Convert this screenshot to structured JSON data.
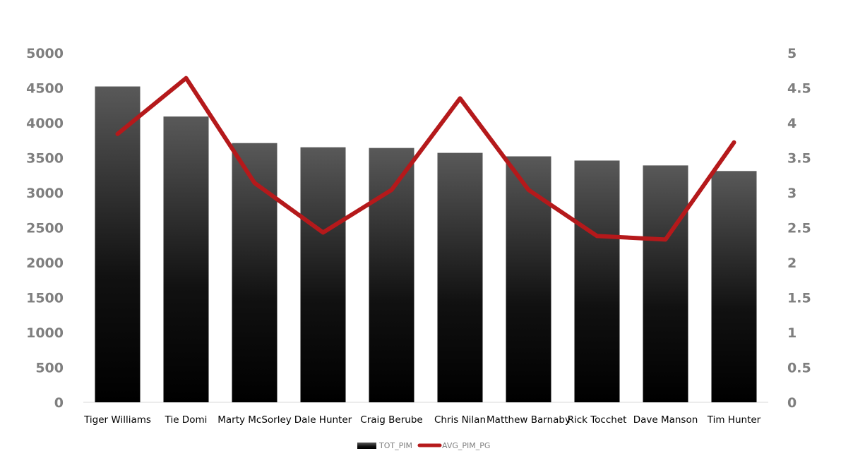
{
  "chart_data": {
    "type": "bar",
    "categories": [
      "Tiger Williams",
      "Tie Domi",
      "Marty McSorley",
      "Dale Hunter",
      "Craig Berube",
      "Chris Nilan",
      "Matthew Barnaby",
      "Rick Tocchet",
      "Dave Manson",
      "Tim Hunter"
    ],
    "series": [
      {
        "name": "TOT_PIM",
        "type": "bar",
        "axis": "left",
        "values": [
          4520,
          4090,
          3710,
          3650,
          3640,
          3570,
          3520,
          3460,
          3390,
          3310
        ]
      },
      {
        "name": "AVG_PIM_PG",
        "type": "line",
        "axis": "right",
        "color": "#b5191b",
        "values": [
          3.84,
          4.64,
          3.14,
          2.43,
          3.04,
          4.35,
          3.04,
          2.38,
          2.33,
          3.72
        ]
      }
    ],
    "ylim_left": [
      0,
      5000
    ],
    "ylim_right": [
      0,
      5
    ],
    "yticks_left": [
      "0",
      "500",
      "1000",
      "1500",
      "2000",
      "2500",
      "3000",
      "3500",
      "4000",
      "4500",
      "5000"
    ],
    "yticks_right": [
      "0",
      "0.5",
      "1",
      "1.5",
      "2",
      "2.5",
      "3",
      "3.5",
      "4",
      "4.5",
      "5"
    ],
    "grid": false,
    "legend": "bottom-center"
  }
}
